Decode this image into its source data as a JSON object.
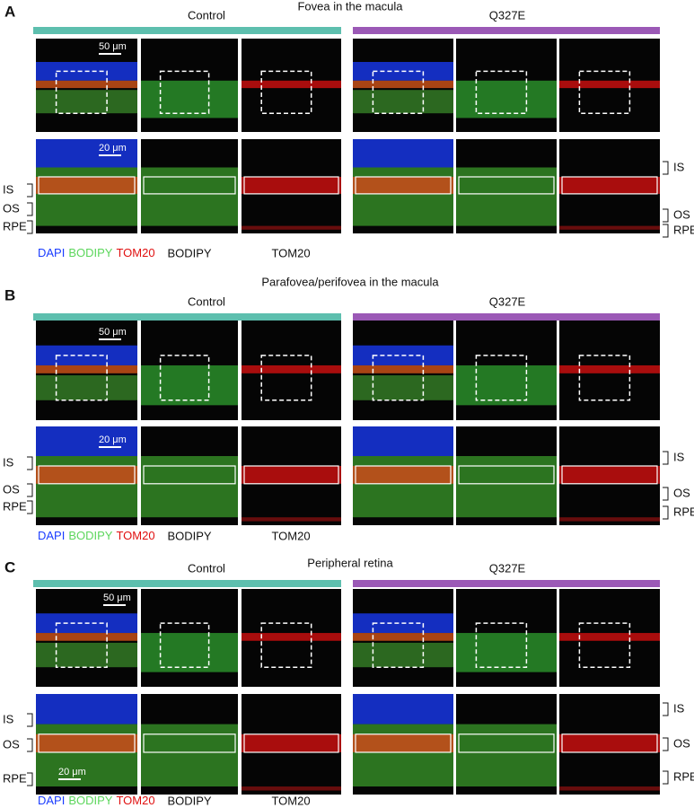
{
  "panels": [
    {
      "letter": "A",
      "title": "Fovea in the macula",
      "groups": [
        "Control",
        "Q327E"
      ],
      "scale_bars": [
        "50 μm",
        "20 μm"
      ],
      "layers_left": [
        "IS",
        "OS",
        "RPE"
      ],
      "layers_right": [
        "IS",
        "OS",
        "RPE"
      ],
      "channels": {
        "merge": [
          "DAPI",
          "BODIPY",
          "TOM20"
        ],
        "green": "BODIPY",
        "red": "TOM20"
      }
    },
    {
      "letter": "B",
      "title": "Parafovea/perifovea in the macula",
      "groups": [
        "Control",
        "Q327E"
      ],
      "scale_bars": [
        "50 μm",
        "20 μm"
      ],
      "layers_left": [
        "IS",
        "OS",
        "RPE"
      ],
      "layers_right": [
        "IS",
        "OS",
        "RPE"
      ],
      "channels": {
        "merge": [
          "DAPI",
          "BODIPY",
          "TOM20"
        ],
        "green": "BODIPY",
        "red": "TOM20"
      }
    },
    {
      "letter": "C",
      "title": "Peripheral retina",
      "groups": [
        "Control",
        "Q327E"
      ],
      "scale_bars": [
        "50 μm",
        "20 μm"
      ],
      "layers_left": [
        "IS",
        "OS",
        "RPE"
      ],
      "layers_right": [
        "IS",
        "OS",
        "RPE"
      ],
      "channels": {
        "merge": [
          "DAPI",
          "BODIPY",
          "TOM20"
        ],
        "green": "BODIPY",
        "red": "TOM20"
      }
    }
  ]
}
